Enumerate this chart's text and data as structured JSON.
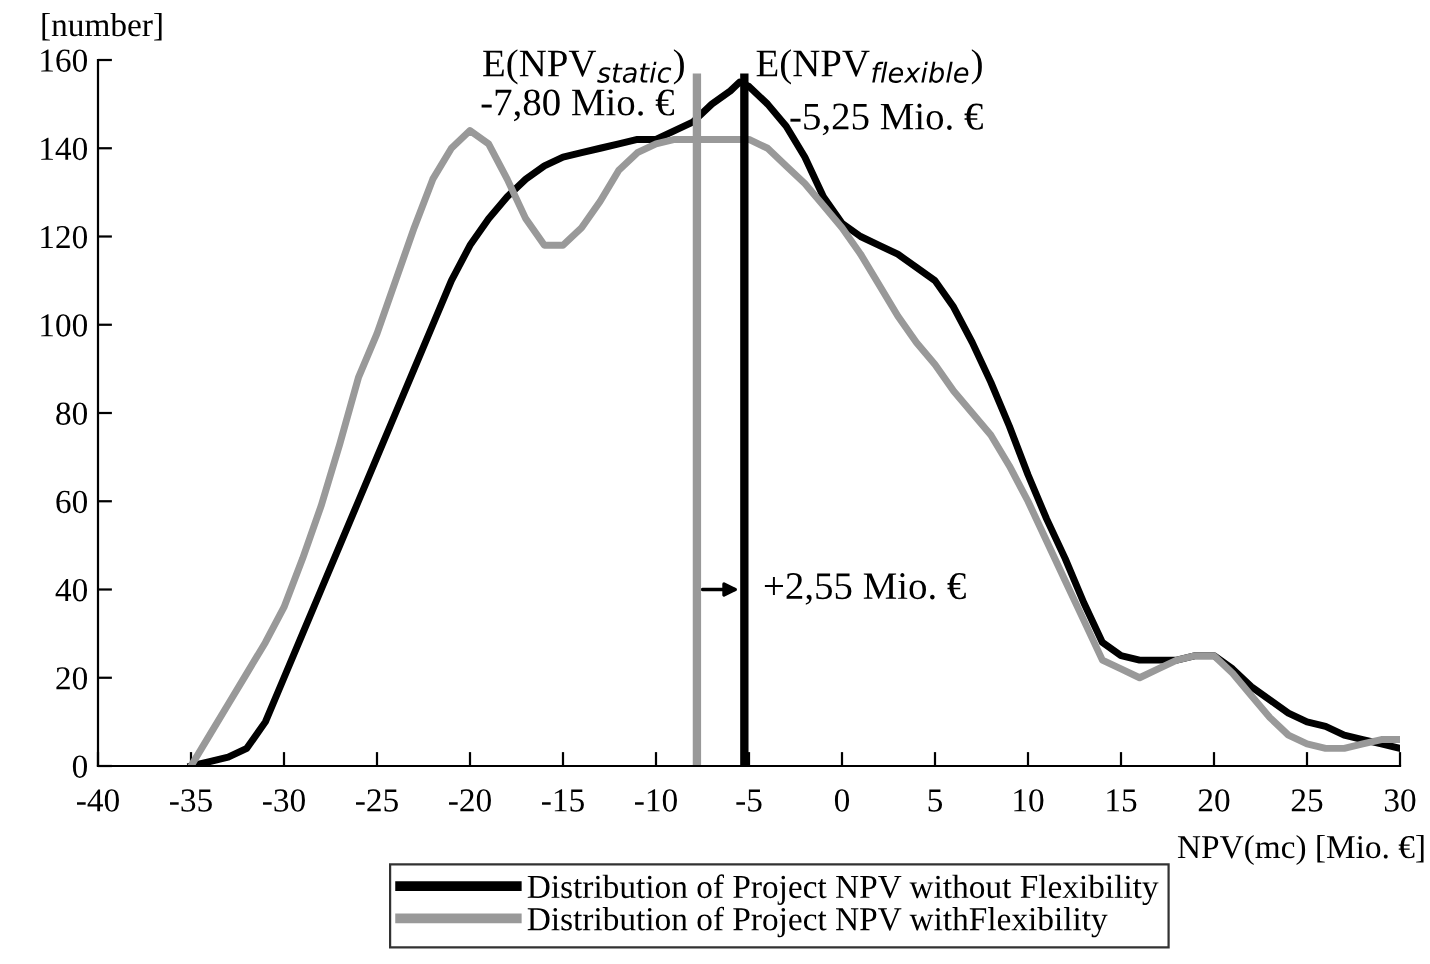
{
  "chart_data": {
    "type": "line",
    "xlabel": "NPV(mc) [Mio. €]",
    "ylabel": "[number]",
    "xlim": [
      -40,
      30
    ],
    "xticks": [
      -40,
      -35,
      -30,
      -25,
      -20,
      -15,
      -10,
      -5,
      0,
      5,
      10,
      15,
      20,
      25,
      30
    ],
    "ylim": [
      0,
      160
    ],
    "yticks": [
      0,
      20,
      40,
      60,
      80,
      100,
      120,
      140,
      160
    ],
    "grid": false,
    "legend": "bottom",
    "marker": "none",
    "line_style": "solid",
    "series": [
      {
        "name": "Distribution of Project NPV without Flexibility",
        "color": "#000000",
        "x": [
          -35,
          -34,
          -33,
          -32,
          -31,
          -30,
          -29,
          -28,
          -27,
          -26,
          -25,
          -24,
          -23,
          -22,
          -21,
          -20,
          -19,
          -18,
          -17,
          -16,
          -15,
          -14,
          -13,
          -12,
          -11,
          -10,
          -9,
          -8,
          -7,
          -6,
          -5.5,
          -5,
          -4,
          -3,
          -2,
          -1,
          0,
          1,
          2,
          3,
          4,
          5,
          6,
          7,
          8,
          9,
          10,
          11,
          12,
          13,
          14,
          15,
          16,
          17,
          18,
          19,
          20,
          21,
          22,
          23,
          24,
          25,
          26,
          27,
          28,
          29,
          30
        ],
        "values": [
          0,
          1,
          2,
          4,
          10,
          20,
          30,
          40,
          50,
          60,
          70,
          80,
          90,
          100,
          110,
          118,
          124,
          129,
          133,
          136,
          138,
          139,
          140,
          141,
          142,
          142,
          144,
          146,
          150,
          153,
          155,
          154,
          150,
          145,
          138,
          129,
          123,
          120,
          118,
          116,
          113,
          110,
          104,
          96,
          87,
          77,
          66,
          56,
          47,
          37,
          28,
          25,
          24,
          24,
          24,
          25,
          25,
          22,
          18,
          15,
          12,
          10,
          9,
          7,
          6,
          5,
          4
        ]
      },
      {
        "name": "Distribution of Project NPV withFlexibility",
        "color": "#999999",
        "x": [
          -35,
          -34,
          -33,
          -32,
          -31,
          -30,
          -29,
          -28,
          -27,
          -26,
          -25,
          -24,
          -23,
          -22,
          -21,
          -20,
          -19,
          -18,
          -17,
          -16,
          -15,
          -14,
          -13,
          -12,
          -11,
          -10,
          -9,
          -8,
          -7,
          -6,
          -5,
          -4,
          -3,
          -2,
          -1,
          0,
          1,
          2,
          3,
          4,
          5,
          6,
          7,
          8,
          9,
          10,
          11,
          12,
          13,
          14,
          15,
          16,
          17,
          18,
          19,
          20,
          21,
          22,
          23,
          24,
          25,
          26,
          27,
          28,
          29,
          30
        ],
        "values": [
          0,
          7,
          14,
          21,
          28,
          36,
          47,
          59,
          73,
          88,
          98,
          110,
          122,
          133,
          140,
          144,
          141,
          133,
          124,
          118,
          118,
          122,
          128,
          135,
          139,
          141,
          142,
          142,
          142,
          142,
          142,
          140,
          136,
          132,
          127,
          122,
          116,
          109,
          102,
          96,
          91,
          85,
          80,
          75,
          68,
          60,
          51,
          42,
          33,
          24,
          22,
          20,
          22,
          24,
          25,
          25,
          21,
          16,
          11,
          7,
          5,
          4,
          4,
          5,
          6,
          6
        ]
      }
    ],
    "ref_lines": [
      {
        "axis": "x",
        "value": -7.8,
        "label": "E(NPV$_{static}$)\n-7,80 Mio. €",
        "color": "#999999"
      },
      {
        "axis": "x",
        "value": -5.25,
        "label": "E(NPV$_{flexible}$)\n-5,25 Mio. €",
        "color": "#000000"
      }
    ],
    "annotations": [
      "+2,55 Mio. €"
    ]
  }
}
